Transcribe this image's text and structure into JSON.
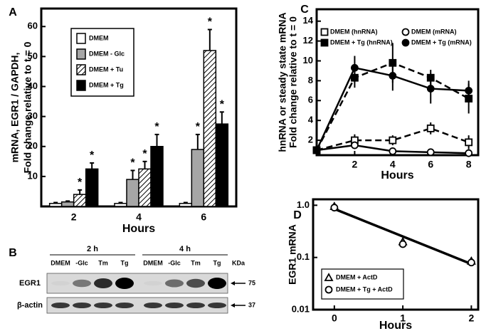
{
  "chart_data": [
    {
      "type": "bar",
      "panel": "A",
      "ylabel": [
        "mRNA, EGR1 / GAPDH,",
        "Fold change relative to t = 0"
      ],
      "xlabel": "Hours",
      "categories": [
        2,
        4,
        6
      ],
      "ylim": [
        0,
        66
      ],
      "yticks": [
        10,
        20,
        30,
        40,
        50,
        60
      ],
      "series": [
        {
          "name": "DMEM",
          "color": "#ffffff",
          "values": [
            1,
            1,
            1
          ],
          "errors": [
            0.3,
            0.3,
            0.3
          ],
          "significance": [
            null,
            null,
            null
          ]
        },
        {
          "name": "DMEM - Glc",
          "color": "#a6a6a6",
          "values": [
            1.5,
            9,
            19
          ],
          "errors": [
            0.3,
            3,
            5
          ],
          "significance": [
            null,
            "*",
            "*"
          ]
        },
        {
          "name": "DMEM + Tu",
          "color": "#ffffff",
          "pattern": "hatch",
          "values": [
            4,
            12.5,
            52
          ],
          "errors": [
            1.5,
            2.5,
            7
          ],
          "significance": [
            "*",
            "*",
            "*"
          ]
        },
        {
          "name": "DMEM + Tg",
          "color": "#000000",
          "values": [
            12.5,
            20,
            27.5
          ],
          "errors": [
            2,
            4,
            4
          ],
          "significance": [
            "*",
            "*",
            "*"
          ]
        }
      ]
    },
    {
      "type": "line",
      "panel": "C",
      "ylabel": [
        "hnRNA or steady state mRNA",
        "Fold change relative to t = 0"
      ],
      "xlabel": "Hours",
      "x": [
        0,
        2,
        4,
        6,
        8
      ],
      "xlim": [
        0,
        8.5
      ],
      "xticks": [
        2,
        4,
        6,
        8
      ],
      "ylim": [
        0.5,
        15.2
      ],
      "yticks": [
        2,
        4,
        6,
        8,
        10,
        12,
        14
      ],
      "series": [
        {
          "name": "DMEM (hnRNA)",
          "color": "#000000",
          "marker": "square",
          "filled": false,
          "linestyle": "dashed",
          "values": [
            1,
            2,
            2,
            3.2,
            1.8
          ],
          "errors": [
            0,
            0.6,
            0.5,
            0.6,
            0.7
          ]
        },
        {
          "name": "DMEM (mRNA)",
          "color": "#000000",
          "marker": "circle",
          "filled": false,
          "linestyle": "solid",
          "values": [
            1,
            1.5,
            0.9,
            0.8,
            0.7
          ],
          "errors": [
            0,
            0.3,
            0.2,
            0.2,
            0.2
          ]
        },
        {
          "name": "DMEM + Tg (hnRNA)",
          "color": "#000000",
          "marker": "square",
          "filled": true,
          "linestyle": "dashed",
          "values": [
            1,
            8.3,
            9.8,
            8.3,
            6.2
          ],
          "errors": [
            0,
            1,
            2,
            0.8,
            1.5
          ]
        },
        {
          "name": "DMEM + Tg (mRNA)",
          "color": "#000000",
          "marker": "circle",
          "filled": true,
          "linestyle": "solid",
          "values": [
            1,
            9.3,
            8.5,
            7.2,
            7.0
          ],
          "errors": [
            0,
            1.2,
            1.5,
            1.5,
            1
          ]
        }
      ]
    },
    {
      "type": "scatter",
      "panel": "D",
      "log_y": true,
      "ylabel": [
        "EGR1 mRNA"
      ],
      "xlabel": "Hours",
      "x": [
        0,
        1,
        2
      ],
      "xlim": [
        -0.31,
        2.1
      ],
      "xticks": [
        0,
        1,
        2
      ],
      "ylim": [
        0.01,
        1.3
      ],
      "yticks": [
        0.01,
        0.1,
        {
          "value": 1,
          "label": "1.0"
        }
      ],
      "series": [
        {
          "name": "DMEM + ActD",
          "color": "#000000",
          "marker": "triangle",
          "filled": false,
          "values": [
            0.95,
            0.2,
            0.085
          ]
        },
        {
          "name": "DMEM + Tg + ActD",
          "color": "#000000",
          "marker": "circle",
          "filled": false,
          "values": [
            0.9,
            0.18,
            0.08
          ]
        }
      ],
      "trend": {
        "x": [
          0,
          2
        ],
        "values": [
          0.85,
          0.075
        ]
      }
    }
  ],
  "blot": {
    "panel": "B",
    "unit": "KDa",
    "groups": [
      {
        "label": "2 h",
        "lanes": [
          "DMEM",
          "-Glc",
          "Tm",
          "Tg"
        ]
      },
      {
        "label": "4 h",
        "lanes": [
          "DMEM",
          "-Glc",
          "Tm",
          "Tg"
        ]
      }
    ],
    "rows": [
      {
        "label": "EGR1",
        "marker": "75"
      },
      {
        "label": "β-actin",
        "marker": "37"
      }
    ]
  }
}
